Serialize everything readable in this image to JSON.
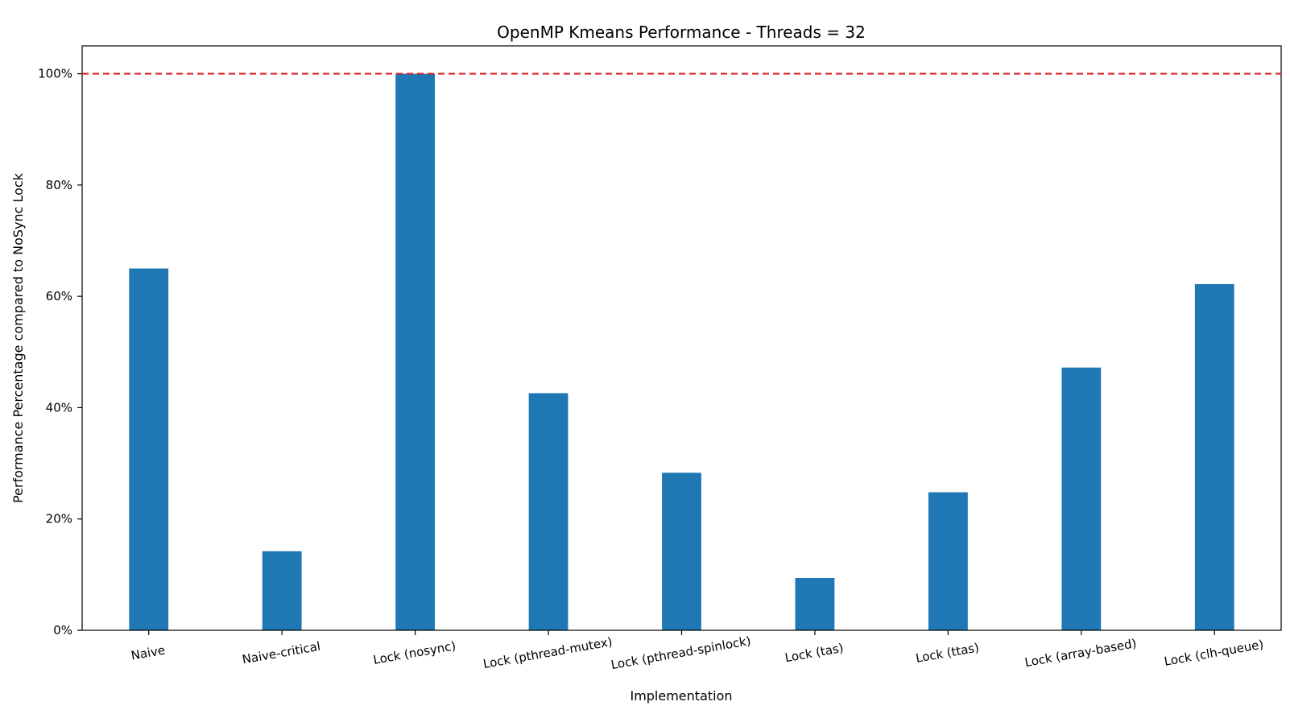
{
  "chart_data": {
    "type": "bar",
    "title": "OpenMP Kmeans Performance - Threads = 32",
    "xlabel": "Implementation",
    "ylabel": "Performance Percentage compared to NoSync Lock",
    "categories": [
      "Naive",
      "Naive-critical",
      "Lock (nosync)",
      "Lock (pthread-mutex)",
      "Lock (pthread-spinlock)",
      "Lock (tas)",
      "Lock (ttas)",
      "Lock (array-based)",
      "Lock (clh-queue)"
    ],
    "values": [
      65.0,
      14.2,
      100.0,
      42.6,
      28.3,
      9.4,
      24.8,
      47.2,
      62.2
    ],
    "ylim": [
      0,
      105
    ],
    "yticks": [
      0,
      20,
      40,
      60,
      80,
      100
    ],
    "ytick_labels": [
      "0%",
      "20%",
      "40%",
      "60%",
      "80%",
      "100%"
    ],
    "reference_line": {
      "value": 100,
      "style": "dashed",
      "color": "#d62728"
    },
    "bar_color": "#1f77b4",
    "grid": false,
    "legend": "none"
  }
}
